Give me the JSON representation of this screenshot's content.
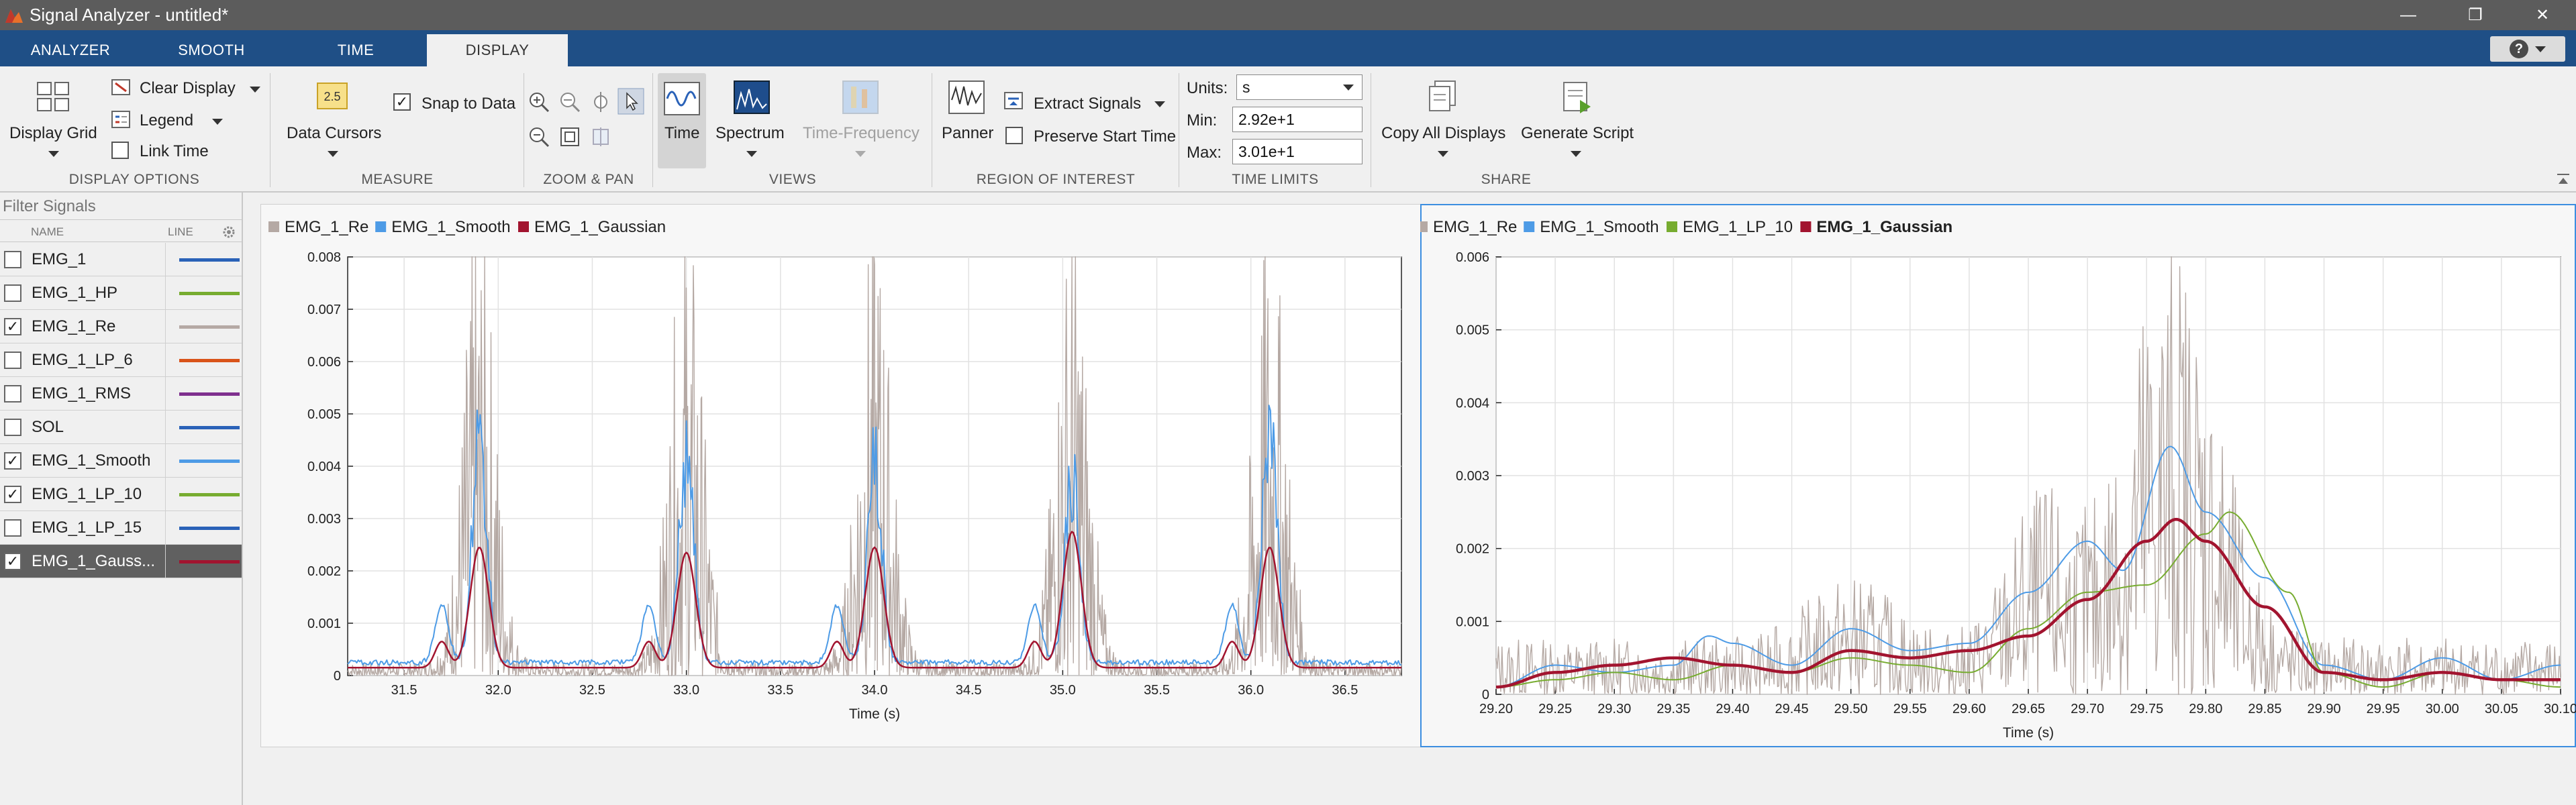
{
  "window": {
    "title": "Signal Analyzer - untitled*",
    "controls": [
      "—",
      "❐",
      "✕"
    ]
  },
  "tabs": [
    "ANALYZER",
    "SMOOTH",
    "TIME",
    "DISPLAY"
  ],
  "active_tab": "DISPLAY",
  "help": {
    "label": "?"
  },
  "toolstrip": {
    "display_options": {
      "label": "DISPLAY OPTIONS",
      "display_grid": "Display Grid",
      "clear_display": "Clear Display",
      "legend": "Legend",
      "link_time": "Link Time"
    },
    "measure": {
      "label": "MEASURE",
      "data_cursors": "Data Cursors",
      "snap_to_data": "Snap to Data",
      "cursor_icon_text": "2.5"
    },
    "zoom_pan": {
      "label": "ZOOM & PAN"
    },
    "views": {
      "label": "VIEWS",
      "time": "Time",
      "spectrum": "Spectrum",
      "time_frequency": "Time-Frequency"
    },
    "roi": {
      "label": "REGION OF INTEREST",
      "panner": "Panner",
      "extract_signals": "Extract Signals",
      "preserve_start_time": "Preserve Start Time"
    },
    "time_limits": {
      "label": "TIME LIMITS",
      "units_label": "Units:",
      "units_value": "s",
      "min_label": "Min:",
      "min_value": "2.92e+1",
      "max_label": "Max:",
      "max_value": "3.01e+1"
    },
    "share": {
      "label": "SHARE",
      "copy_all": "Copy All Displays",
      "generate_script": "Generate Script"
    }
  },
  "signal_panel": {
    "filter_placeholder": "Filter Signals",
    "col_name": "NAME",
    "col_line": "LINE",
    "signals": [
      {
        "name": "EMG_1",
        "checked": false,
        "color": "#2a62b8"
      },
      {
        "name": "EMG_1_HP",
        "checked": false,
        "color": "#77ac30"
      },
      {
        "name": "EMG_1_Re",
        "checked": true,
        "color": "#b5a9a4"
      },
      {
        "name": "EMG_1_LP_6",
        "checked": false,
        "color": "#d95319"
      },
      {
        "name": "EMG_1_RMS",
        "checked": false,
        "color": "#7e2f8e"
      },
      {
        "name": "SOL",
        "checked": false,
        "color": "#2a62b8"
      },
      {
        "name": "EMG_1_Smooth",
        "checked": true,
        "color": "#4d9be6"
      },
      {
        "name": "EMG_1_LP_10",
        "checked": true,
        "color": "#77ac30"
      },
      {
        "name": "EMG_1_LP_15",
        "checked": false,
        "color": "#2a62b8"
      },
      {
        "name": "EMG_1_Gauss...",
        "checked": true,
        "color": "#a2142f",
        "selected": true
      }
    ]
  },
  "chart_data": [
    {
      "type": "line",
      "xlabel": "Time (s)",
      "xlim": [
        31.2,
        36.8
      ],
      "ylim": [
        0,
        0.008
      ],
      "x_ticks": [
        "31.5",
        "32.0",
        "32.5",
        "33.0",
        "33.5",
        "34.0",
        "34.5",
        "35.0",
        "35.5",
        "36.0",
        "36.5"
      ],
      "y_ticks": [
        "0",
        "0.001",
        "0.002",
        "0.003",
        "0.004",
        "0.005",
        "0.006",
        "0.007",
        "0.008"
      ],
      "grid": true,
      "legend": {
        "placement": "top-left",
        "entries": [
          {
            "name": "EMG_1_Re",
            "color": "#b5a9a4"
          },
          {
            "name": "EMG_1_Smooth",
            "color": "#4d9be6"
          },
          {
            "name": "EMG_1_Gaussian",
            "color": "#a2142f"
          }
        ]
      },
      "bursts": [
        {
          "t": 31.9,
          "peak": 0.008,
          "smooth": 0.0042,
          "gauss": 0.0023
        },
        {
          "t": 33.0,
          "peak": 0.008,
          "smooth": 0.004,
          "gauss": 0.0022
        },
        {
          "t": 34.0,
          "peak": 0.008,
          "smooth": 0.0038,
          "gauss": 0.0023
        },
        {
          "t": 35.05,
          "peak": 0.008,
          "smooth": 0.0035,
          "gauss": 0.0026
        },
        {
          "t": 36.1,
          "peak": 0.008,
          "smooth": 0.0045,
          "gauss": 0.0023
        }
      ]
    },
    {
      "type": "line",
      "xlabel": "Time (s)",
      "xlim": [
        29.2,
        30.1
      ],
      "ylim": [
        0,
        0.006
      ],
      "x_ticks": [
        "29.20",
        "29.25",
        "29.30",
        "29.35",
        "29.40",
        "29.45",
        "29.50",
        "29.55",
        "29.60",
        "29.65",
        "29.70",
        "29.75",
        "29.80",
        "29.85",
        "29.90",
        "29.95",
        "30.00",
        "30.05",
        "30.10"
      ],
      "y_ticks": [
        "0",
        "0.001",
        "0.002",
        "0.003",
        "0.004",
        "0.005",
        "0.006"
      ],
      "grid": true,
      "legend": {
        "placement": "top-left",
        "entries": [
          {
            "name": "EMG_1_Re",
            "color": "#b5a9a4"
          },
          {
            "name": "EMG_1_Smooth",
            "color": "#4d9be6"
          },
          {
            "name": "EMG_1_LP_10",
            "color": "#77ac30"
          },
          {
            "name": "EMG_1_Gaussian",
            "color": "#a2142f",
            "bold": true
          }
        ]
      },
      "gaussian": {
        "x": [
          29.2,
          29.25,
          29.3,
          29.35,
          29.4,
          29.45,
          29.5,
          29.55,
          29.6,
          29.65,
          29.7,
          29.75,
          29.775,
          29.8,
          29.85,
          29.9,
          29.95,
          30.0,
          30.05,
          30.1
        ],
        "y": [
          0.0001,
          0.0003,
          0.0004,
          0.0005,
          0.0004,
          0.0003,
          0.0006,
          0.0005,
          0.0006,
          0.0008,
          0.0013,
          0.0021,
          0.0024,
          0.0021,
          0.0012,
          0.0003,
          0.0002,
          0.0003,
          0.0002,
          0.0002
        ]
      },
      "smooth": {
        "x": [
          29.2,
          29.25,
          29.3,
          29.35,
          29.38,
          29.4,
          29.45,
          29.5,
          29.55,
          29.6,
          29.65,
          29.7,
          29.73,
          29.77,
          29.8,
          29.85,
          29.9,
          29.95,
          30.0,
          30.05,
          30.1
        ],
        "y": [
          0.0001,
          0.0004,
          0.0003,
          0.0004,
          0.0008,
          0.0007,
          0.0004,
          0.0009,
          0.0006,
          0.0007,
          0.0014,
          0.0021,
          0.0017,
          0.0034,
          0.0025,
          0.0016,
          0.0004,
          0.0002,
          0.0005,
          0.0002,
          0.0004
        ]
      },
      "lp10": {
        "x": [
          29.2,
          29.25,
          29.3,
          29.35,
          29.4,
          29.45,
          29.5,
          29.55,
          29.6,
          29.65,
          29.7,
          29.75,
          29.8,
          29.82,
          29.87,
          29.9,
          29.95,
          30.0,
          30.05,
          30.1
        ],
        "y": [
          0.0001,
          0.0002,
          0.0003,
          0.0002,
          0.0004,
          0.0003,
          0.0005,
          0.0004,
          0.0003,
          0.0009,
          0.0014,
          0.0015,
          0.0022,
          0.0025,
          0.0014,
          0.0003,
          0.0001,
          0.0003,
          0.0002,
          0.0001
        ]
      }
    }
  ]
}
